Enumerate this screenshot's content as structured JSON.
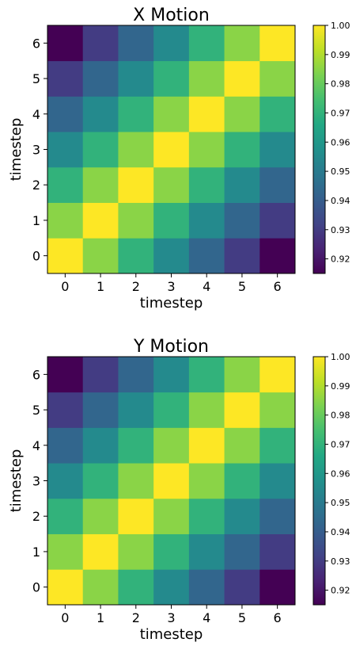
{
  "chart_data": [
    {
      "type": "heatmap",
      "title": "X Motion",
      "xlabel": "timestep",
      "ylabel": "timestep",
      "x": [
        0,
        1,
        2,
        3,
        4,
        5,
        6
      ],
      "y": [
        0,
        1,
        2,
        3,
        4,
        5,
        6
      ],
      "values": [
        [
          1.0,
          0.985,
          0.97,
          0.955,
          0.943,
          0.93,
          0.915
        ],
        [
          0.985,
          1.0,
          0.985,
          0.97,
          0.955,
          0.943,
          0.93
        ],
        [
          0.97,
          0.985,
          1.0,
          0.985,
          0.97,
          0.955,
          0.943
        ],
        [
          0.955,
          0.97,
          0.985,
          1.0,
          0.985,
          0.97,
          0.955
        ],
        [
          0.943,
          0.955,
          0.97,
          0.985,
          1.0,
          0.985,
          0.97
        ],
        [
          0.93,
          0.943,
          0.955,
          0.97,
          0.985,
          1.0,
          0.985
        ],
        [
          0.915,
          0.93,
          0.943,
          0.955,
          0.97,
          0.985,
          1.0
        ]
      ],
      "colorbar": {
        "range": [
          0.915,
          1.0
        ],
        "ticks": [
          0.92,
          0.93,
          0.94,
          0.95,
          0.96,
          0.97,
          0.98,
          0.99,
          1.0
        ],
        "tick_labels": [
          "0.92",
          "0.93",
          "0.94",
          "0.95",
          "0.96",
          "0.97",
          "0.98",
          "0.99",
          "1.00"
        ],
        "colormap": "viridis"
      },
      "grid": false
    },
    {
      "type": "heatmap",
      "title": "Y Motion",
      "xlabel": "timestep",
      "ylabel": "timestep",
      "x": [
        0,
        1,
        2,
        3,
        4,
        5,
        6
      ],
      "y": [
        0,
        1,
        2,
        3,
        4,
        5,
        6
      ],
      "values": [
        [
          1.0,
          0.985,
          0.97,
          0.955,
          0.943,
          0.93,
          0.915
        ],
        [
          0.985,
          1.0,
          0.985,
          0.97,
          0.955,
          0.943,
          0.93
        ],
        [
          0.97,
          0.985,
          1.0,
          0.985,
          0.97,
          0.955,
          0.943
        ],
        [
          0.955,
          0.97,
          0.985,
          1.0,
          0.985,
          0.97,
          0.955
        ],
        [
          0.943,
          0.955,
          0.97,
          0.985,
          1.0,
          0.985,
          0.97
        ],
        [
          0.93,
          0.943,
          0.955,
          0.97,
          0.985,
          1.0,
          0.985
        ],
        [
          0.915,
          0.93,
          0.943,
          0.955,
          0.97,
          0.985,
          1.0
        ]
      ],
      "colorbar": {
        "range": [
          0.915,
          1.0
        ],
        "ticks": [
          0.92,
          0.93,
          0.94,
          0.95,
          0.96,
          0.97,
          0.98,
          0.99,
          1.0
        ],
        "tick_labels": [
          "0.92",
          "0.93",
          "0.94",
          "0.95",
          "0.96",
          "0.97",
          "0.98",
          "0.99",
          "1.00"
        ],
        "colormap": "viridis"
      },
      "grid": false
    }
  ]
}
